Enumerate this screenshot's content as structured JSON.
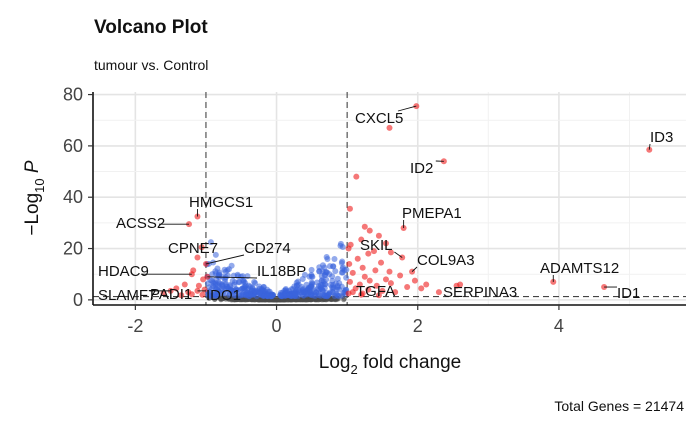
{
  "chart_data": {
    "type": "scatter",
    "title": "Volcano Plot",
    "subtitle": "tumour vs. Control",
    "xlabel": {
      "main": "Log",
      "sub": "2",
      "rest": " fold change"
    },
    "ylabel": {
      "prefix": "−Log",
      "sub": "10",
      "rest": " P"
    },
    "caption": "Total Genes = 21474",
    "xlim": [
      -2.6,
      5.8
    ],
    "ylim": [
      -2,
      81
    ],
    "xticks": [
      {
        "v": -2,
        "label": "-2"
      },
      {
        "v": 0,
        "label": "0"
      },
      {
        "v": 2,
        "label": "2"
      },
      {
        "v": 4,
        "label": "4"
      }
    ],
    "yticks": [
      {
        "v": 0,
        "label": "0"
      },
      {
        "v": 20,
        "label": "20"
      },
      {
        "v": 40,
        "label": "40"
      },
      {
        "v": 60,
        "label": "60"
      },
      {
        "v": 80,
        "label": "80"
      }
    ],
    "cutoffs": {
      "fc_low": -1,
      "fc_high": 1,
      "p_line": 1.3
    },
    "grid": true,
    "colors": {
      "not_significant": "#4a4a4a",
      "p_value_only": "#3a64dc",
      "significant": "#ee1c1c"
    },
    "labeled_genes": [
      {
        "gene": "CXCL5",
        "x": 1.98,
        "y": 75.5
      },
      {
        "gene": "ID3",
        "x": 5.28,
        "y": 58.5
      },
      {
        "gene": "ID2",
        "x": 2.37,
        "y": 54.0
      },
      {
        "gene": "HMGCS1",
        "x": -1.12,
        "y": 32.5
      },
      {
        "gene": "ACSS2",
        "x": -1.24,
        "y": 29.5
      },
      {
        "gene": "PMEPA1",
        "x": 1.8,
        "y": 28.0
      },
      {
        "gene": "CPNE7",
        "x": -1.12,
        "y": 16.5
      },
      {
        "gene": "CD274",
        "x": -1.0,
        "y": 14.0
      },
      {
        "gene": "SKIL",
        "x": 1.78,
        "y": 16.5
      },
      {
        "gene": "COL9A3",
        "x": 1.92,
        "y": 11.0
      },
      {
        "gene": "HDAC9",
        "x": -1.2,
        "y": 10.0
      },
      {
        "gene": "IL18BP",
        "x": -0.98,
        "y": 9.0
      },
      {
        "gene": "ADAMTS12",
        "x": 3.92,
        "y": 7.0
      },
      {
        "gene": "ID1",
        "x": 4.64,
        "y": 5.0
      },
      {
        "gene": "SERPINA3",
        "x": 2.6,
        "y": 6.0
      },
      {
        "gene": "TGFA",
        "x": 1.22,
        "y": 2.5
      },
      {
        "gene": "SLAMF7",
        "x": -1.5,
        "y": 3.5
      },
      {
        "gene": "PADI1",
        "x": -1.25,
        "y": 3.0
      },
      {
        "gene": "IDO1",
        "x": -1.12,
        "y": 3.5
      }
    ],
    "other_significant_points": [
      [
        1.6,
        67.0
      ],
      [
        1.13,
        48.0
      ],
      [
        1.04,
        35.5
      ],
      [
        1.25,
        28.5
      ],
      [
        1.32,
        27.0
      ],
      [
        1.45,
        25.0
      ],
      [
        1.2,
        23.5
      ],
      [
        1.55,
        22.0
      ],
      [
        1.05,
        21.5
      ],
      [
        1.02,
        20.0
      ],
      [
        1.38,
        19.0
      ],
      [
        1.3,
        18.0
      ],
      [
        1.62,
        18.5
      ],
      [
        1.15,
        16.0
      ],
      [
        1.48,
        14.5
      ],
      [
        1.03,
        14.0
      ],
      [
        1.22,
        12.5
      ],
      [
        1.4,
        11.5
      ],
      [
        1.6,
        11.0
      ],
      [
        1.75,
        9.5
      ],
      [
        1.08,
        10.5
      ],
      [
        1.25,
        9.0
      ],
      [
        1.55,
        8.0
      ],
      [
        1.32,
        7.5
      ],
      [
        1.04,
        7.0
      ],
      [
        1.62,
        6.5
      ],
      [
        1.18,
        6.0
      ],
      [
        1.42,
        5.5
      ],
      [
        1.85,
        5.0
      ],
      [
        2.05,
        4.5
      ],
      [
        1.12,
        4.5
      ],
      [
        1.3,
        4.0
      ],
      [
        1.5,
        3.5
      ],
      [
        1.68,
        3.0
      ],
      [
        2.3,
        3.0
      ],
      [
        1.08,
        3.0
      ],
      [
        1.96,
        7.5
      ],
      [
        2.12,
        6.0
      ],
      [
        2.55,
        5.5
      ],
      [
        1.02,
        2.5
      ],
      [
        1.2,
        2.0
      ],
      [
        1.45,
        1.8
      ],
      [
        -1.06,
        20.5
      ],
      [
        -1.18,
        11.5
      ],
      [
        -1.04,
        8.0
      ],
      [
        -1.3,
        6.0
      ],
      [
        -1.1,
        5.5
      ],
      [
        -1.42,
        4.5
      ],
      [
        -1.02,
        4.0
      ],
      [
        -1.6,
        2.6
      ],
      [
        -1.2,
        2.2
      ],
      [
        -1.05,
        2.0
      ],
      [
        -1.35,
        1.8
      ]
    ]
  }
}
